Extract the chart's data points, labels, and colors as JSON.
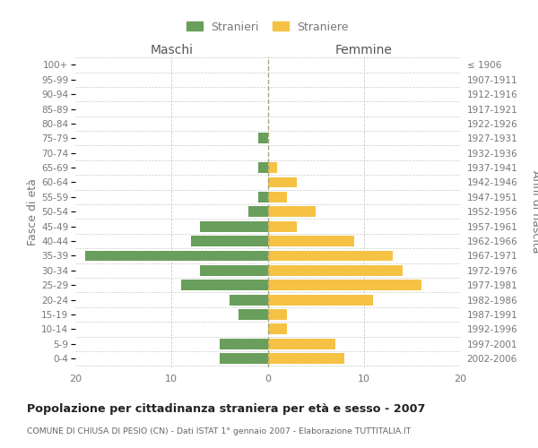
{
  "age_groups": [
    "100+",
    "95-99",
    "90-94",
    "85-89",
    "80-84",
    "75-79",
    "70-74",
    "65-69",
    "60-64",
    "55-59",
    "50-54",
    "45-49",
    "40-44",
    "35-39",
    "30-34",
    "25-29",
    "20-24",
    "15-19",
    "10-14",
    "5-9",
    "0-4"
  ],
  "birth_years": [
    "≤ 1906",
    "1907-1911",
    "1912-1916",
    "1917-1921",
    "1922-1926",
    "1927-1931",
    "1932-1936",
    "1937-1941",
    "1942-1946",
    "1947-1951",
    "1952-1956",
    "1957-1961",
    "1962-1966",
    "1967-1971",
    "1972-1976",
    "1977-1981",
    "1982-1986",
    "1987-1991",
    "1992-1996",
    "1997-2001",
    "2002-2006"
  ],
  "maschi": [
    0,
    0,
    0,
    0,
    0,
    1,
    0,
    1,
    0,
    1,
    2,
    7,
    8,
    19,
    7,
    9,
    4,
    3,
    0,
    5,
    5
  ],
  "femmine": [
    0,
    0,
    0,
    0,
    0,
    0,
    0,
    1,
    3,
    2,
    5,
    3,
    9,
    13,
    14,
    16,
    11,
    2,
    2,
    7,
    8
  ],
  "male_color": "#6a9e5c",
  "female_color": "#f5c244",
  "legend_male": "Stranieri",
  "legend_female": "Straniere",
  "label_maschi": "Maschi",
  "label_femmine": "Femmine",
  "ylabel_left": "Fasce di età",
  "ylabel_right": "Anni di nascita",
  "title": "Popolazione per cittadinanza straniera per età e sesso - 2007",
  "subtitle": "COMUNE DI CHIUSA DI PESIO (CN) - Dati ISTAT 1° gennaio 2007 - Elaborazione TUTTITALIA.IT",
  "xlim": 20,
  "bg_color": "#ffffff",
  "grid_color": "#cccccc",
  "text_color": "#777777",
  "header_color": "#555555"
}
